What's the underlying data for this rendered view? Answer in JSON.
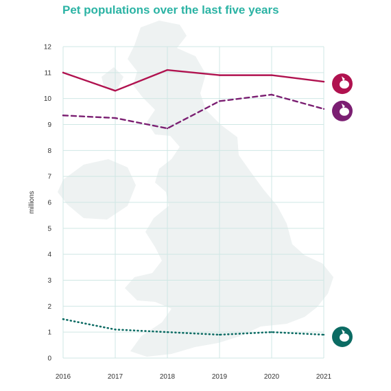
{
  "chart_data": {
    "type": "line",
    "title": "Pet populations over the last five years",
    "ylabel": "millions",
    "xlabel": "",
    "x": [
      "2016",
      "2017",
      "2018",
      "2019",
      "2020",
      "2021"
    ],
    "ylim": [
      0,
      12
    ],
    "yticks": [
      "0",
      "1",
      "2",
      "3",
      "4",
      "5",
      "6",
      "7",
      "8",
      "9",
      "10",
      "11",
      "12"
    ],
    "grid": true,
    "background": "map of Great Britain",
    "series": [
      {
        "icon": "dog-icon",
        "style": "solid",
        "color": "#b0124f",
        "values": [
          11.0,
          10.3,
          11.1,
          10.9,
          10.9,
          10.65
        ]
      },
      {
        "icon": "cat-icon",
        "style": "dashed",
        "color": "#7b1f72",
        "values": [
          9.35,
          9.25,
          8.85,
          9.9,
          10.15,
          9.6
        ]
      },
      {
        "icon": "rabbit-icon",
        "style": "dotted",
        "color": "#0b6b63",
        "values": [
          1.5,
          1.1,
          1.0,
          0.9,
          1.0,
          0.9
        ]
      }
    ]
  }
}
